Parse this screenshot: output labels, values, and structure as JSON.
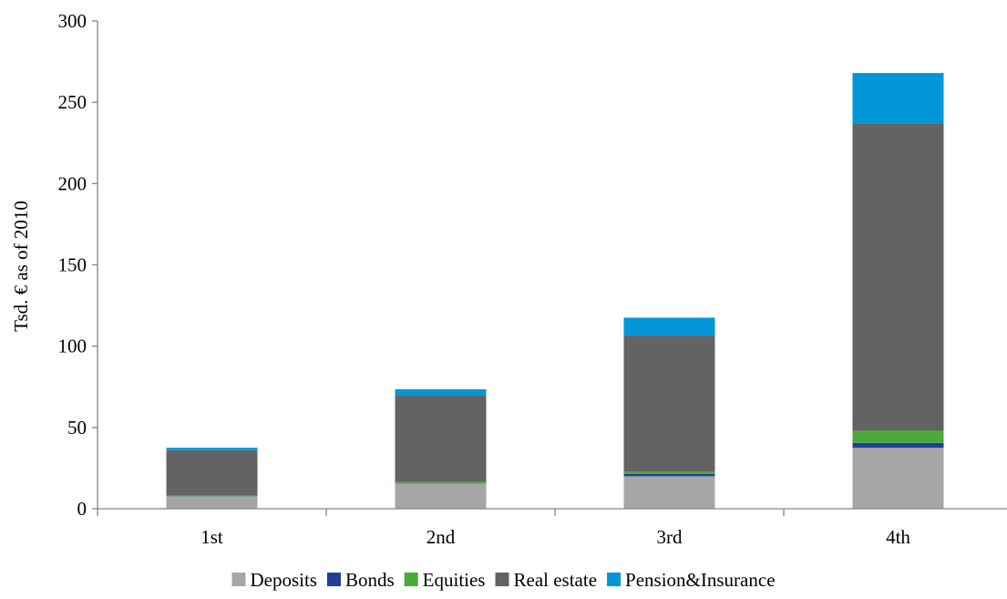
{
  "chart_data": {
    "type": "bar",
    "stacked": true,
    "categories": [
      "1st",
      "2nd",
      "3rd",
      "4th"
    ],
    "series": [
      {
        "name": "Deposits",
        "color": "#a6a6a6",
        "values": [
          7.5,
          15.5,
          20,
          37.5
        ]
      },
      {
        "name": "Bonds",
        "color": "#1f3f99",
        "values": [
          0.2,
          0.3,
          1.5,
          3
        ]
      },
      {
        "name": "Equities",
        "color": "#4aaa3a",
        "values": [
          0.3,
          0.7,
          1.5,
          7.5
        ]
      },
      {
        "name": "Real estate",
        "color": "#636363",
        "values": [
          28,
          53.5,
          83.5,
          189
        ]
      },
      {
        "name": "Pension&Insurance",
        "color": "#0096d8",
        "values": [
          1.5,
          3.5,
          11,
          31
        ]
      }
    ],
    "title": "",
    "xlabel": "",
    "ylabel": "Tsd. € as of 2010",
    "ylim": [
      0,
      300
    ],
    "yticks": [
      0,
      50,
      100,
      150,
      200,
      250,
      300
    ],
    "grid": false,
    "legend": "bottom"
  }
}
